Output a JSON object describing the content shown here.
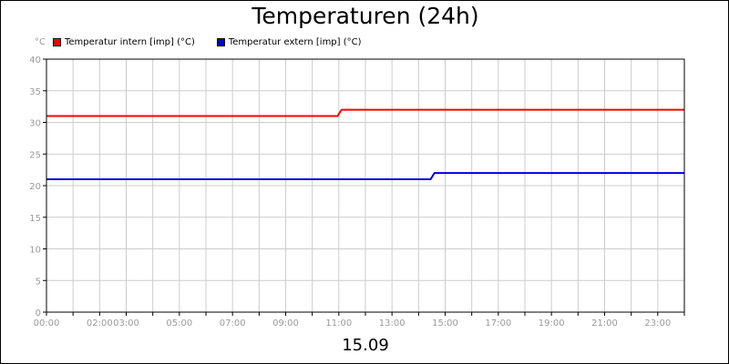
{
  "chart_data": {
    "type": "line",
    "title": "Temperaturen (24h)",
    "xlabel": "15.09",
    "ylabel": "°C",
    "ylim": [
      0,
      40
    ],
    "yticks": [
      0,
      5,
      10,
      15,
      20,
      25,
      30,
      35,
      40
    ],
    "xlim": [
      0,
      24
    ],
    "xtick_labels": [
      {
        "hour": 0,
        "label": "00:00"
      },
      {
        "hour": 2,
        "label": "02:00"
      },
      {
        "hour": 3,
        "label": "03:00"
      },
      {
        "hour": 5,
        "label": "05:00"
      },
      {
        "hour": 7,
        "label": "07:00"
      },
      {
        "hour": 9,
        "label": "09:00"
      },
      {
        "hour": 11,
        "label": "11:00"
      },
      {
        "hour": 13,
        "label": "13:00"
      },
      {
        "hour": 15,
        "label": "15:00"
      },
      {
        "hour": 17,
        "label": "17:00"
      },
      {
        "hour": 19,
        "label": "19:00"
      },
      {
        "hour": 21,
        "label": "21:00"
      },
      {
        "hour": 23,
        "label": "23:00"
      }
    ],
    "grid": true,
    "legend_position": "top-left",
    "series": [
      {
        "name": "Temperatur intern [imp] (°C)",
        "color": "#ff0000",
        "points": [
          [
            0,
            31
          ],
          [
            10.95,
            31
          ],
          [
            11.1,
            32
          ],
          [
            24,
            32
          ]
        ]
      },
      {
        "name": "Temperatur extern [imp] (°C)",
        "color": "#0000cc",
        "points": [
          [
            0,
            21
          ],
          [
            14.45,
            21
          ],
          [
            14.6,
            22
          ],
          [
            24,
            22
          ]
        ]
      }
    ]
  }
}
